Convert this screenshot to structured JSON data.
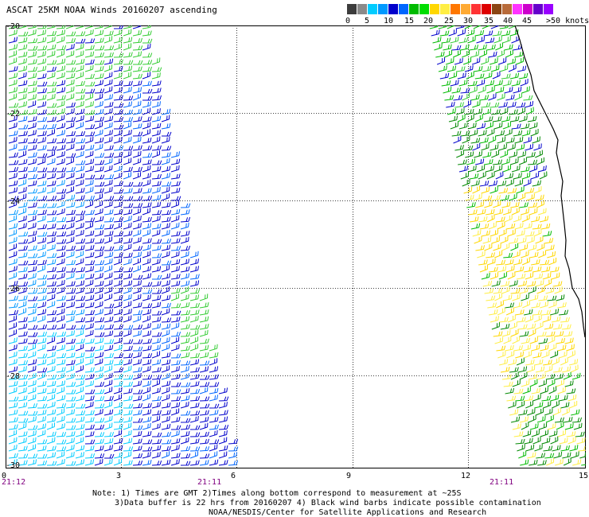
{
  "title": "ASCAT 25KM NOAA Winds 20160207 ascending",
  "legend": {
    "colors": [
      "#3c3c3c",
      "#8a8a8a",
      "#00ccff",
      "#0099ff",
      "#0000cc",
      "#0066ff",
      "#00bb00",
      "#00dd00",
      "#ffd700",
      "#ffee44",
      "#ff7700",
      "#ffaa33",
      "#ff3333",
      "#dd0000",
      "#8b4513",
      "#b86b3a",
      "#ff33ff",
      "#cc00cc",
      "#6600cc",
      "#9900ff"
    ],
    "labels": [
      "0",
      "5",
      "10",
      "15",
      "20",
      "25",
      "30",
      "35",
      "40",
      "45",
      ">50 knots"
    ]
  },
  "axes": {
    "y_labels": [
      "-20",
      "-22",
      "-24",
      "-26",
      "-28",
      "-30"
    ],
    "x_labels": [
      "0",
      "3",
      "6",
      "9",
      "12",
      "15"
    ],
    "time_labels": [
      "21:12",
      "21:11",
      "21:11"
    ]
  },
  "notes": {
    "line1": "Note: 1) Times are GMT 2)Times along bottom correspond to measurement at ~25S",
    "line2": "3)Data buffer is 22 hrs from 20160207 4) Black wind barbs indicate possible contamination",
    "line3": "NOAA/NESDIS/Center for Satellite Applications and Research"
  }
}
